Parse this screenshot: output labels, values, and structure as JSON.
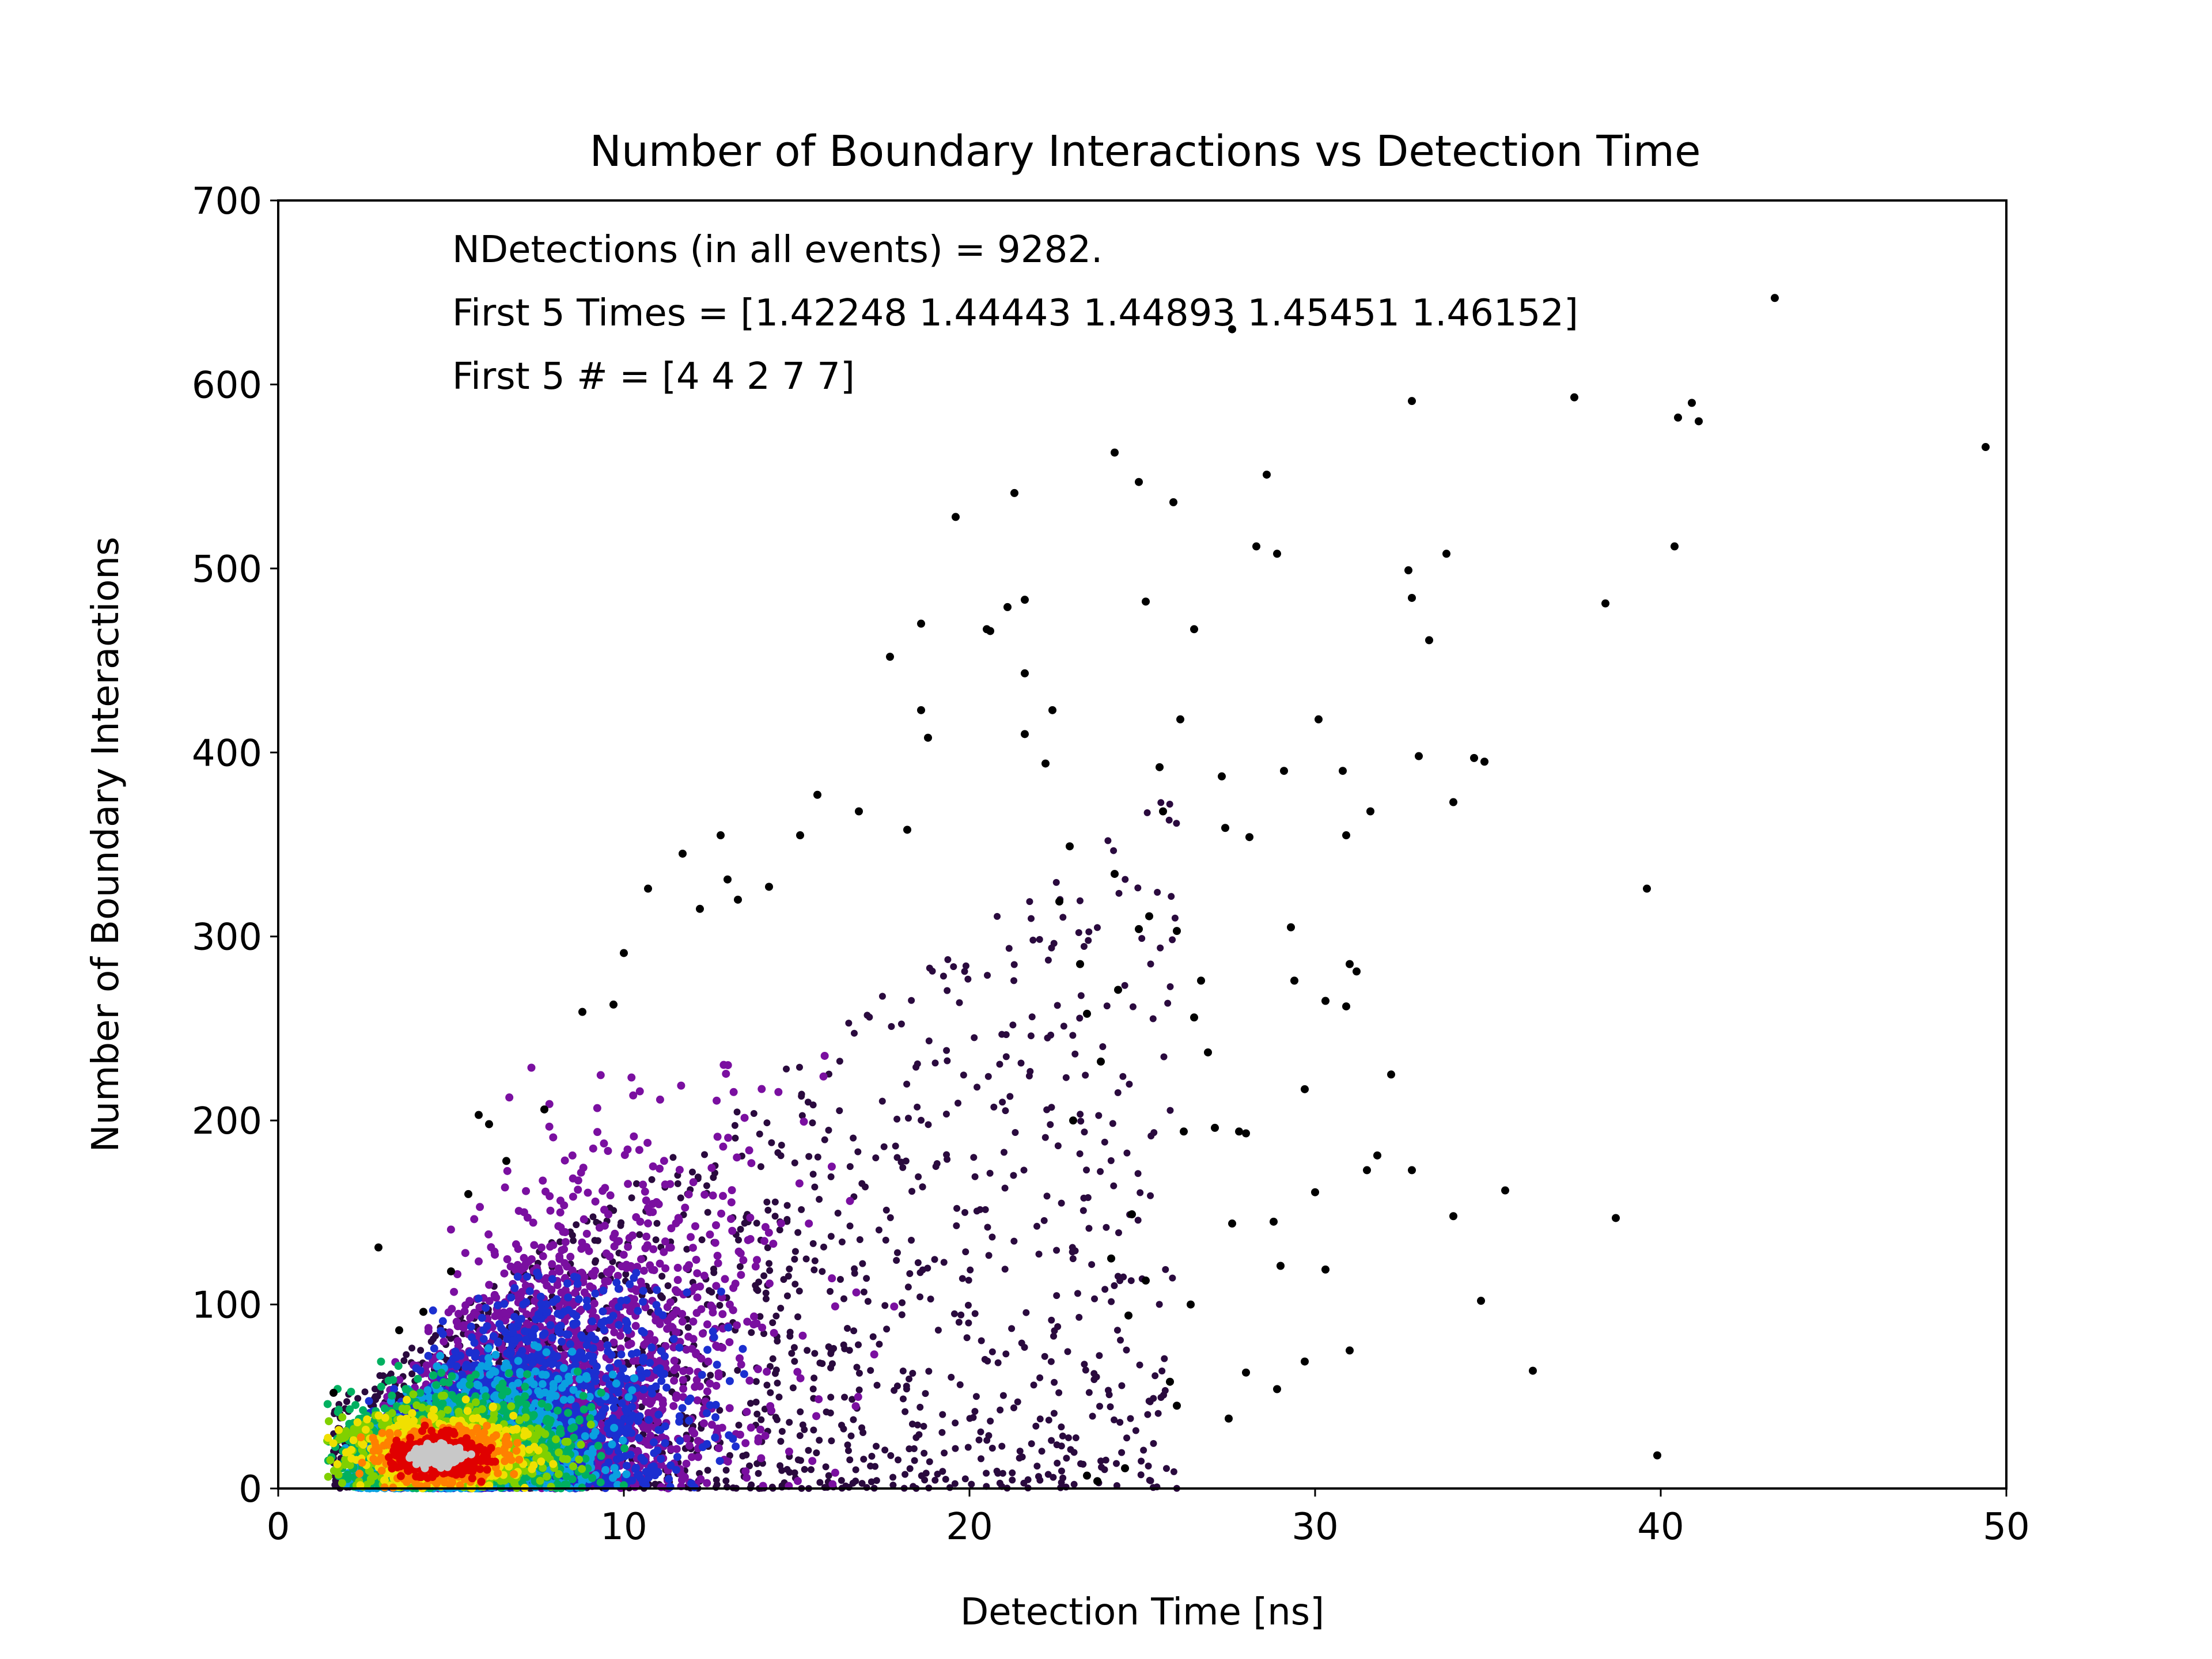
{
  "chart_data": {
    "type": "scatter",
    "title": "Number of Boundary Interactions vs Detection Time",
    "xlabel": "Detection Time [ns]",
    "ylabel": "Number of Boundary Interactions",
    "xlim": [
      0,
      50
    ],
    "ylim": [
      0,
      700
    ],
    "x_ticks": [
      0,
      10,
      20,
      30,
      40,
      50
    ],
    "y_ticks": [
      0,
      100,
      200,
      300,
      400,
      500,
      600,
      700
    ],
    "grid": false,
    "legend": "none",
    "annotations": [
      "NDetections (in all events) = 9282.",
      "First 5 Times = [1.42248 1.44443 1.44893 1.45451 1.46152]",
      "First 5 # = [4 4 2 7 7]"
    ],
    "colormap": "nipy_spectral-like density coloring",
    "density_colors": [
      "#2a0a3e",
      "#7a0fa0",
      "#1b2fd0",
      "#0aa0e0",
      "#00b060",
      "#80d000",
      "#f0e000",
      "#ff8000",
      "#e00000",
      "#c8c8c8"
    ],
    "density_core": {
      "center": [
        4.5,
        18
      ],
      "spread_x_ns": 2.5,
      "spread_y": 20,
      "bulk_extent_x": [
        1.4,
        26
      ],
      "bulk_extent_y": [
        0,
        380
      ]
    },
    "sparse_points": [
      [
        1.6,
        52
      ],
      [
        2.9,
        131
      ],
      [
        3.5,
        86
      ],
      [
        4.2,
        96
      ],
      [
        5.0,
        118
      ],
      [
        5.5,
        160
      ],
      [
        5.8,
        203
      ],
      [
        6.1,
        198
      ],
      [
        6.6,
        178
      ],
      [
        7.7,
        206
      ],
      [
        8.8,
        259
      ],
      [
        9.7,
        263
      ],
      [
        10.0,
        291
      ],
      [
        10.7,
        326
      ],
      [
        11.7,
        345
      ],
      [
        12.2,
        315
      ],
      [
        12.8,
        355
      ],
      [
        13.0,
        331
      ],
      [
        13.3,
        320
      ],
      [
        14.2,
        327
      ],
      [
        15.1,
        355
      ],
      [
        15.6,
        377
      ],
      [
        16.8,
        368
      ],
      [
        17.7,
        452
      ],
      [
        18.2,
        358
      ],
      [
        18.6,
        470
      ],
      [
        18.6,
        423
      ],
      [
        18.8,
        408
      ],
      [
        19.6,
        528
      ],
      [
        20.5,
        467
      ],
      [
        20.6,
        466
      ],
      [
        21.1,
        479
      ],
      [
        21.3,
        541
      ],
      [
        21.6,
        483
      ],
      [
        21.6,
        443
      ],
      [
        21.6,
        410
      ],
      [
        22.2,
        394
      ],
      [
        22.4,
        423
      ],
      [
        24.2,
        563
      ],
      [
        24.9,
        547
      ],
      [
        25.1,
        482
      ],
      [
        25.5,
        392
      ],
      [
        25.9,
        536
      ],
      [
        26.1,
        418
      ],
      [
        26.5,
        467
      ],
      [
        27.4,
        359
      ],
      [
        27.6,
        630
      ],
      [
        28.1,
        354
      ],
      [
        28.3,
        512
      ],
      [
        28.6,
        551
      ],
      [
        28.9,
        508
      ],
      [
        29.1,
        390
      ],
      [
        30.1,
        418
      ],
      [
        30.8,
        390
      ],
      [
        30.9,
        355
      ],
      [
        31.6,
        368
      ],
      [
        32.7,
        499
      ],
      [
        32.8,
        484
      ],
      [
        32.8,
        591
      ],
      [
        33.0,
        398
      ],
      [
        33.3,
        461
      ],
      [
        33.8,
        508
      ],
      [
        34.6,
        397
      ],
      [
        34.9,
        395
      ],
      [
        34.0,
        373
      ],
      [
        37.5,
        593
      ],
      [
        38.4,
        481
      ],
      [
        39.6,
        326
      ],
      [
        40.4,
        512
      ],
      [
        40.5,
        582
      ],
      [
        40.9,
        590
      ],
      [
        41.1,
        580
      ],
      [
        43.3,
        647
      ],
      [
        49.4,
        566
      ],
      [
        27.3,
        387
      ],
      [
        26.9,
        237
      ],
      [
        27.8,
        194
      ],
      [
        28.0,
        193
      ],
      [
        27.6,
        144
      ],
      [
        28.8,
        145
      ],
      [
        29.0,
        121
      ],
      [
        29.3,
        305
      ],
      [
        29.4,
        276
      ],
      [
        29.7,
        217
      ],
      [
        30.0,
        161
      ],
      [
        30.3,
        119
      ],
      [
        29.7,
        69
      ],
      [
        30.3,
        265
      ],
      [
        31.0,
        285
      ],
      [
        31.2,
        281
      ],
      [
        30.9,
        262
      ],
      [
        32.2,
        225
      ],
      [
        31.8,
        181
      ],
      [
        31.5,
        173
      ],
      [
        31.0,
        75
      ],
      [
        32.8,
        173
      ],
      [
        34.0,
        148
      ],
      [
        34.8,
        102
      ],
      [
        35.5,
        162
      ],
      [
        36.3,
        64
      ],
      [
        38.7,
        147
      ],
      [
        39.9,
        18
      ],
      [
        28.0,
        63
      ],
      [
        27.5,
        38
      ],
      [
        28.9,
        54
      ],
      [
        26.4,
        100
      ],
      [
        26.0,
        45
      ],
      [
        25.8,
        58
      ],
      [
        25.1,
        113
      ],
      [
        24.6,
        94
      ],
      [
        24.7,
        149
      ],
      [
        24.1,
        125
      ],
      [
        23.4,
        7
      ],
      [
        23.7,
        4
      ],
      [
        24.5,
        11
      ],
      [
        26.2,
        194
      ],
      [
        27.1,
        196
      ],
      [
        26.5,
        256
      ],
      [
        26.7,
        276
      ],
      [
        26.0,
        303
      ],
      [
        25.2,
        311
      ],
      [
        25.6,
        368
      ],
      [
        23.0,
        200
      ],
      [
        23.4,
        258
      ],
      [
        23.8,
        232
      ],
      [
        24.3,
        271
      ],
      [
        22.9,
        349
      ],
      [
        22.6,
        319
      ],
      [
        23.2,
        285
      ],
      [
        24.2,
        334
      ],
      [
        24.9,
        304
      ]
    ]
  }
}
